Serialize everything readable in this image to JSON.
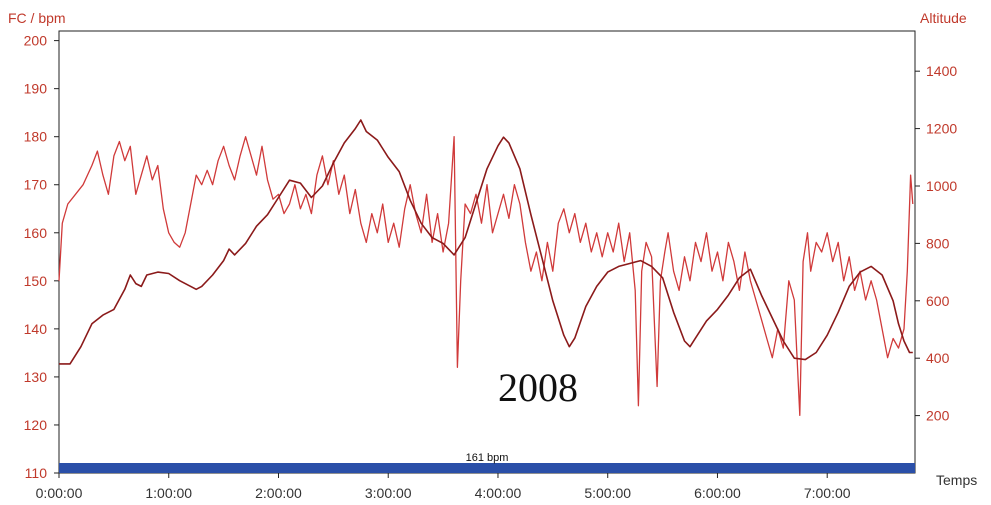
{
  "chart_data": {
    "type": "line",
    "left_axis": {
      "title": "FC / bpm",
      "ylim": [
        110,
        202
      ],
      "ticks": [
        110,
        120,
        130,
        140,
        150,
        160,
        170,
        180,
        190,
        200
      ]
    },
    "right_axis": {
      "title": "Altitude",
      "ylim": [
        0,
        1540
      ],
      "ticks": [
        200,
        400,
        600,
        800,
        1000,
        1200,
        1400
      ]
    },
    "x_axis": {
      "title": "Temps",
      "range_hours": [
        0,
        7.8
      ],
      "ticks": [
        "0:00:00",
        "1:00:00",
        "2:00:00",
        "3:00:00",
        "4:00:00",
        "5:00:00",
        "6:00:00",
        "7:00:00"
      ]
    },
    "annotation": "2008",
    "average_band": {
      "label": "161 bpm",
      "value_bpm": 161,
      "color": "#2a4fa8"
    },
    "series": [
      {
        "axis": "left",
        "color": "#d03a3a",
        "points": [
          [
            0.0,
            150
          ],
          [
            0.03,
            162
          ],
          [
            0.08,
            166
          ],
          [
            0.15,
            168
          ],
          [
            0.22,
            170
          ],
          [
            0.3,
            174
          ],
          [
            0.35,
            177
          ],
          [
            0.4,
            172
          ],
          [
            0.45,
            168
          ],
          [
            0.5,
            176
          ],
          [
            0.55,
            179
          ],
          [
            0.6,
            175
          ],
          [
            0.65,
            178
          ],
          [
            0.7,
            168
          ],
          [
            0.75,
            172
          ],
          [
            0.8,
            176
          ],
          [
            0.85,
            171
          ],
          [
            0.9,
            174
          ],
          [
            0.95,
            165
          ],
          [
            1.0,
            160
          ],
          [
            1.05,
            158
          ],
          [
            1.1,
            157
          ],
          [
            1.15,
            160
          ],
          [
            1.2,
            166
          ],
          [
            1.25,
            172
          ],
          [
            1.3,
            170
          ],
          [
            1.35,
            173
          ],
          [
            1.4,
            170
          ],
          [
            1.45,
            175
          ],
          [
            1.5,
            178
          ],
          [
            1.55,
            174
          ],
          [
            1.6,
            171
          ],
          [
            1.65,
            176
          ],
          [
            1.7,
            180
          ],
          [
            1.75,
            176
          ],
          [
            1.8,
            172
          ],
          [
            1.85,
            178
          ],
          [
            1.9,
            171
          ],
          [
            1.95,
            167
          ],
          [
            2.0,
            168
          ],
          [
            2.05,
            164
          ],
          [
            2.1,
            166
          ],
          [
            2.15,
            170
          ],
          [
            2.2,
            165
          ],
          [
            2.25,
            168
          ],
          [
            2.3,
            164
          ],
          [
            2.35,
            172
          ],
          [
            2.4,
            176
          ],
          [
            2.45,
            170
          ],
          [
            2.5,
            175
          ],
          [
            2.55,
            168
          ],
          [
            2.6,
            172
          ],
          [
            2.65,
            164
          ],
          [
            2.7,
            169
          ],
          [
            2.75,
            162
          ],
          [
            2.8,
            158
          ],
          [
            2.85,
            164
          ],
          [
            2.9,
            160
          ],
          [
            2.95,
            166
          ],
          [
            3.0,
            158
          ],
          [
            3.05,
            162
          ],
          [
            3.1,
            157
          ],
          [
            3.15,
            165
          ],
          [
            3.2,
            170
          ],
          [
            3.25,
            164
          ],
          [
            3.3,
            160
          ],
          [
            3.35,
            168
          ],
          [
            3.4,
            158
          ],
          [
            3.45,
            164
          ],
          [
            3.5,
            156
          ],
          [
            3.55,
            162
          ],
          [
            3.6,
            180
          ],
          [
            3.63,
            132
          ],
          [
            3.66,
            150
          ],
          [
            3.7,
            166
          ],
          [
            3.75,
            164
          ],
          [
            3.8,
            168
          ],
          [
            3.85,
            162
          ],
          [
            3.9,
            170
          ],
          [
            3.95,
            160
          ],
          [
            4.0,
            164
          ],
          [
            4.05,
            168
          ],
          [
            4.1,
            163
          ],
          [
            4.15,
            170
          ],
          [
            4.2,
            166
          ],
          [
            4.25,
            158
          ],
          [
            4.3,
            152
          ],
          [
            4.35,
            156
          ],
          [
            4.4,
            150
          ],
          [
            4.45,
            158
          ],
          [
            4.5,
            152
          ],
          [
            4.55,
            162
          ],
          [
            4.6,
            165
          ],
          [
            4.65,
            160
          ],
          [
            4.7,
            164
          ],
          [
            4.75,
            158
          ],
          [
            4.8,
            162
          ],
          [
            4.85,
            156
          ],
          [
            4.9,
            160
          ],
          [
            4.95,
            155
          ],
          [
            5.0,
            160
          ],
          [
            5.05,
            156
          ],
          [
            5.1,
            162
          ],
          [
            5.15,
            154
          ],
          [
            5.2,
            160
          ],
          [
            5.25,
            148
          ],
          [
            5.28,
            124
          ],
          [
            5.31,
            152
          ],
          [
            5.35,
            158
          ],
          [
            5.4,
            155
          ],
          [
            5.45,
            128
          ],
          [
            5.48,
            150
          ],
          [
            5.52,
            156
          ],
          [
            5.55,
            160
          ],
          [
            5.6,
            152
          ],
          [
            5.65,
            148
          ],
          [
            5.7,
            155
          ],
          [
            5.75,
            150
          ],
          [
            5.8,
            158
          ],
          [
            5.85,
            154
          ],
          [
            5.9,
            160
          ],
          [
            5.95,
            152
          ],
          [
            6.0,
            156
          ],
          [
            6.05,
            150
          ],
          [
            6.1,
            158
          ],
          [
            6.15,
            154
          ],
          [
            6.2,
            148
          ],
          [
            6.25,
            156
          ],
          [
            6.3,
            150
          ],
          [
            6.35,
            146
          ],
          [
            6.4,
            142
          ],
          [
            6.45,
            138
          ],
          [
            6.5,
            134
          ],
          [
            6.55,
            140
          ],
          [
            6.6,
            136
          ],
          [
            6.65,
            150
          ],
          [
            6.7,
            146
          ],
          [
            6.75,
            122
          ],
          [
            6.78,
            154
          ],
          [
            6.82,
            160
          ],
          [
            6.85,
            152
          ],
          [
            6.9,
            158
          ],
          [
            6.95,
            156
          ],
          [
            7.0,
            160
          ],
          [
            7.05,
            154
          ],
          [
            7.1,
            158
          ],
          [
            7.15,
            150
          ],
          [
            7.2,
            155
          ],
          [
            7.25,
            148
          ],
          [
            7.3,
            152
          ],
          [
            7.35,
            146
          ],
          [
            7.4,
            150
          ],
          [
            7.45,
            146
          ],
          [
            7.5,
            140
          ],
          [
            7.55,
            134
          ],
          [
            7.6,
            138
          ],
          [
            7.65,
            136
          ],
          [
            7.7,
            140
          ],
          [
            7.73,
            152
          ],
          [
            7.76,
            172
          ],
          [
            7.78,
            166
          ]
        ]
      },
      {
        "axis": "right",
        "color": "#8b1a1a",
        "points": [
          [
            0.0,
            380
          ],
          [
            0.1,
            380
          ],
          [
            0.2,
            440
          ],
          [
            0.3,
            520
          ],
          [
            0.4,
            550
          ],
          [
            0.5,
            570
          ],
          [
            0.6,
            640
          ],
          [
            0.65,
            690
          ],
          [
            0.7,
            660
          ],
          [
            0.75,
            650
          ],
          [
            0.8,
            690
          ],
          [
            0.9,
            700
          ],
          [
            1.0,
            695
          ],
          [
            1.1,
            670
          ],
          [
            1.2,
            650
          ],
          [
            1.25,
            640
          ],
          [
            1.3,
            650
          ],
          [
            1.4,
            690
          ],
          [
            1.5,
            740
          ],
          [
            1.55,
            780
          ],
          [
            1.6,
            760
          ],
          [
            1.7,
            800
          ],
          [
            1.8,
            860
          ],
          [
            1.9,
            900
          ],
          [
            2.0,
            960
          ],
          [
            2.1,
            1020
          ],
          [
            2.2,
            1010
          ],
          [
            2.3,
            960
          ],
          [
            2.4,
            1000
          ],
          [
            2.5,
            1080
          ],
          [
            2.6,
            1150
          ],
          [
            2.7,
            1200
          ],
          [
            2.75,
            1230
          ],
          [
            2.8,
            1190
          ],
          [
            2.9,
            1160
          ],
          [
            3.0,
            1100
          ],
          [
            3.1,
            1050
          ],
          [
            3.2,
            950
          ],
          [
            3.3,
            870
          ],
          [
            3.4,
            820
          ],
          [
            3.5,
            800
          ],
          [
            3.6,
            760
          ],
          [
            3.7,
            820
          ],
          [
            3.8,
            940
          ],
          [
            3.9,
            1060
          ],
          [
            4.0,
            1140
          ],
          [
            4.05,
            1170
          ],
          [
            4.1,
            1150
          ],
          [
            4.2,
            1060
          ],
          [
            4.3,
            900
          ],
          [
            4.4,
            750
          ],
          [
            4.5,
            600
          ],
          [
            4.6,
            480
          ],
          [
            4.65,
            440
          ],
          [
            4.7,
            470
          ],
          [
            4.8,
            580
          ],
          [
            4.9,
            650
          ],
          [
            5.0,
            700
          ],
          [
            5.1,
            720
          ],
          [
            5.2,
            730
          ],
          [
            5.3,
            740
          ],
          [
            5.4,
            720
          ],
          [
            5.5,
            680
          ],
          [
            5.6,
            560
          ],
          [
            5.7,
            460
          ],
          [
            5.75,
            440
          ],
          [
            5.8,
            470
          ],
          [
            5.9,
            530
          ],
          [
            6.0,
            570
          ],
          [
            6.1,
            620
          ],
          [
            6.2,
            680
          ],
          [
            6.3,
            710
          ],
          [
            6.4,
            620
          ],
          [
            6.5,
            540
          ],
          [
            6.6,
            460
          ],
          [
            6.7,
            400
          ],
          [
            6.8,
            395
          ],
          [
            6.9,
            420
          ],
          [
            7.0,
            480
          ],
          [
            7.1,
            560
          ],
          [
            7.2,
            650
          ],
          [
            7.3,
            700
          ],
          [
            7.4,
            720
          ],
          [
            7.5,
            690
          ],
          [
            7.6,
            600
          ],
          [
            7.65,
            520
          ],
          [
            7.7,
            460
          ],
          [
            7.75,
            420
          ],
          [
            7.78,
            420
          ]
        ]
      }
    ]
  }
}
